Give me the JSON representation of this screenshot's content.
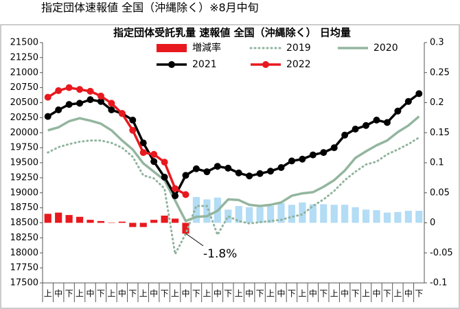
{
  "chart_data": {
    "type": "line",
    "header": "指定団体速報値 全国（沖縄除く）※8月中旬",
    "title": "指定団体受託乳量 速報値 全国（沖縄除く） 日均量",
    "categories": [
      "上",
      "中",
      "下",
      "上",
      "中",
      "下",
      "上",
      "中",
      "下",
      "上",
      "中",
      "下",
      "上",
      "中",
      "下",
      "上",
      "中",
      "下",
      "上",
      "中",
      "下",
      "上",
      "中",
      "下",
      "上",
      "中",
      "下",
      "上",
      "中",
      "下",
      "上",
      "中",
      "下",
      "上",
      "中",
      "下"
    ],
    "ylim": [
      17500,
      21500
    ],
    "yticks": [
      17500,
      17750,
      18000,
      18250,
      18500,
      18750,
      19000,
      19250,
      19500,
      19750,
      20000,
      20250,
      20500,
      20750,
      21000,
      21250,
      21500
    ],
    "y2lim": [
      -0.1,
      0.3
    ],
    "y2ticks": [
      -0.1,
      -0.05,
      0,
      0.05,
      0.1,
      0.15,
      0.2,
      0.25,
      0.3
    ],
    "annotations": [
      "-1.8%"
    ],
    "series": [
      {
        "name": "増減率",
        "type": "bar",
        "axis": "y2",
        "color": "#e8191e",
        "colors": [
          "#e8191e",
          "#e8191e",
          "#e8191e",
          "#e8191e",
          "#e8191e",
          "#e8191e",
          "#e8191e",
          "#e8191e",
          "#e8191e",
          "#e8191e",
          "#e8191e",
          "#e8191e",
          "#e8191e",
          "#e8191e",
          "#b3dcf5",
          "#b3dcf5",
          "#b3dcf5",
          "#b3dcf5",
          "#b3dcf5",
          "#b3dcf5",
          "#b3dcf5",
          "#b3dcf5",
          "#b3dcf5",
          "#b3dcf5",
          "#b3dcf5",
          "#b3dcf5",
          "#b3dcf5",
          "#b3dcf5",
          "#b3dcf5",
          "#b3dcf5",
          "#b3dcf5",
          "#b3dcf5",
          "#b3dcf5",
          "#b3dcf5",
          "#b3dcf5",
          "#b3dcf5"
        ],
        "values": [
          0.015,
          0.017,
          0.013,
          0.01,
          0.005,
          0.003,
          0,
          0.002,
          -0.007,
          -0.007,
          0.005,
          0.012,
          0.007,
          -0.018,
          0.043,
          0.039,
          0.042,
          0.022,
          0.028,
          0.026,
          0.026,
          0.028,
          0.033,
          0.03,
          0.034,
          0.031,
          0.031,
          0.03,
          0.03,
          0.026,
          0.022,
          0.021,
          0.017,
          0.018,
          0.02,
          0.02
        ]
      },
      {
        "name": "2019",
        "type": "dotted",
        "color": "#8fb39c",
        "values": [
          19670,
          19760,
          19810,
          19850,
          19870,
          19870,
          19830,
          19750,
          19600,
          19290,
          19240,
          19070,
          17980,
          18320,
          18780,
          18780,
          18300,
          18610,
          18530,
          18490,
          18510,
          18530,
          18550,
          18600,
          18640,
          18780,
          18890,
          19030,
          19210,
          19350,
          19470,
          19520,
          19640,
          19720,
          19810,
          19920
        ]
      },
      {
        "name": "2020",
        "type": "line",
        "color": "#93b59e",
        "values": [
          20040,
          20090,
          20190,
          20240,
          20200,
          20150,
          20040,
          19870,
          19720,
          19490,
          19350,
          19210,
          18870,
          18530,
          18600,
          18610,
          18700,
          18890,
          18880,
          18800,
          18780,
          18800,
          18840,
          18950,
          18990,
          19010,
          19100,
          19210,
          19370,
          19580,
          19690,
          19790,
          19870,
          20010,
          20120,
          20270
        ]
      },
      {
        "name": "2021",
        "type": "marker",
        "color": "#000000",
        "values": [
          20270,
          20380,
          20470,
          20490,
          20550,
          20520,
          20380,
          20320,
          20210,
          19830,
          19520,
          19260,
          18950,
          19290,
          19400,
          19350,
          19440,
          19410,
          19330,
          19280,
          19320,
          19360,
          19420,
          19530,
          19560,
          19630,
          19670,
          19750,
          19960,
          20060,
          20120,
          20210,
          20170,
          20360,
          20520,
          20650
        ]
      },
      {
        "name": "2022",
        "type": "marker",
        "color": "#e8191e",
        "values": [
          20590,
          20700,
          20750,
          20720,
          20690,
          20610,
          20490,
          20320,
          20040,
          19670,
          19640,
          19510,
          19070,
          18970,
          null,
          null,
          null,
          null,
          null,
          null,
          null,
          null,
          null,
          null,
          null,
          null,
          null,
          null,
          null,
          null,
          null,
          null,
          null,
          null,
          null,
          null
        ]
      }
    ]
  }
}
